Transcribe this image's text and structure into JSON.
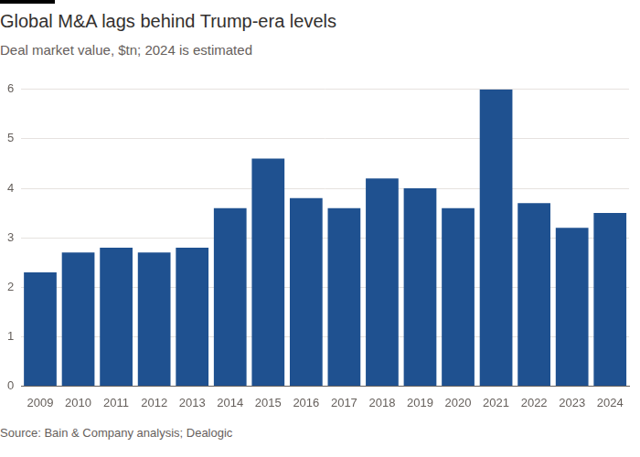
{
  "chart_data": {
    "type": "bar",
    "title": "Global M&A lags behind Trump-era levels",
    "subtitle": "Deal market value, $tn; 2024 is estimated",
    "source": "Source: Bain & Company analysis; Dealogic",
    "categories": [
      "2009",
      "2010",
      "2011",
      "2012",
      "2013",
      "2014",
      "2015",
      "2016",
      "2017",
      "2018",
      "2019",
      "2020",
      "2021",
      "2022",
      "2023",
      "2024"
    ],
    "values": [
      2.3,
      2.7,
      2.8,
      2.7,
      2.8,
      3.6,
      4.6,
      3.8,
      3.6,
      4.2,
      4.0,
      3.6,
      6.0,
      3.7,
      3.2,
      3.5
    ],
    "color": "#1f5190",
    "ylim": [
      0,
      6
    ],
    "yticks": [
      0,
      1,
      2,
      3,
      4,
      5,
      6
    ],
    "grid": true
  }
}
